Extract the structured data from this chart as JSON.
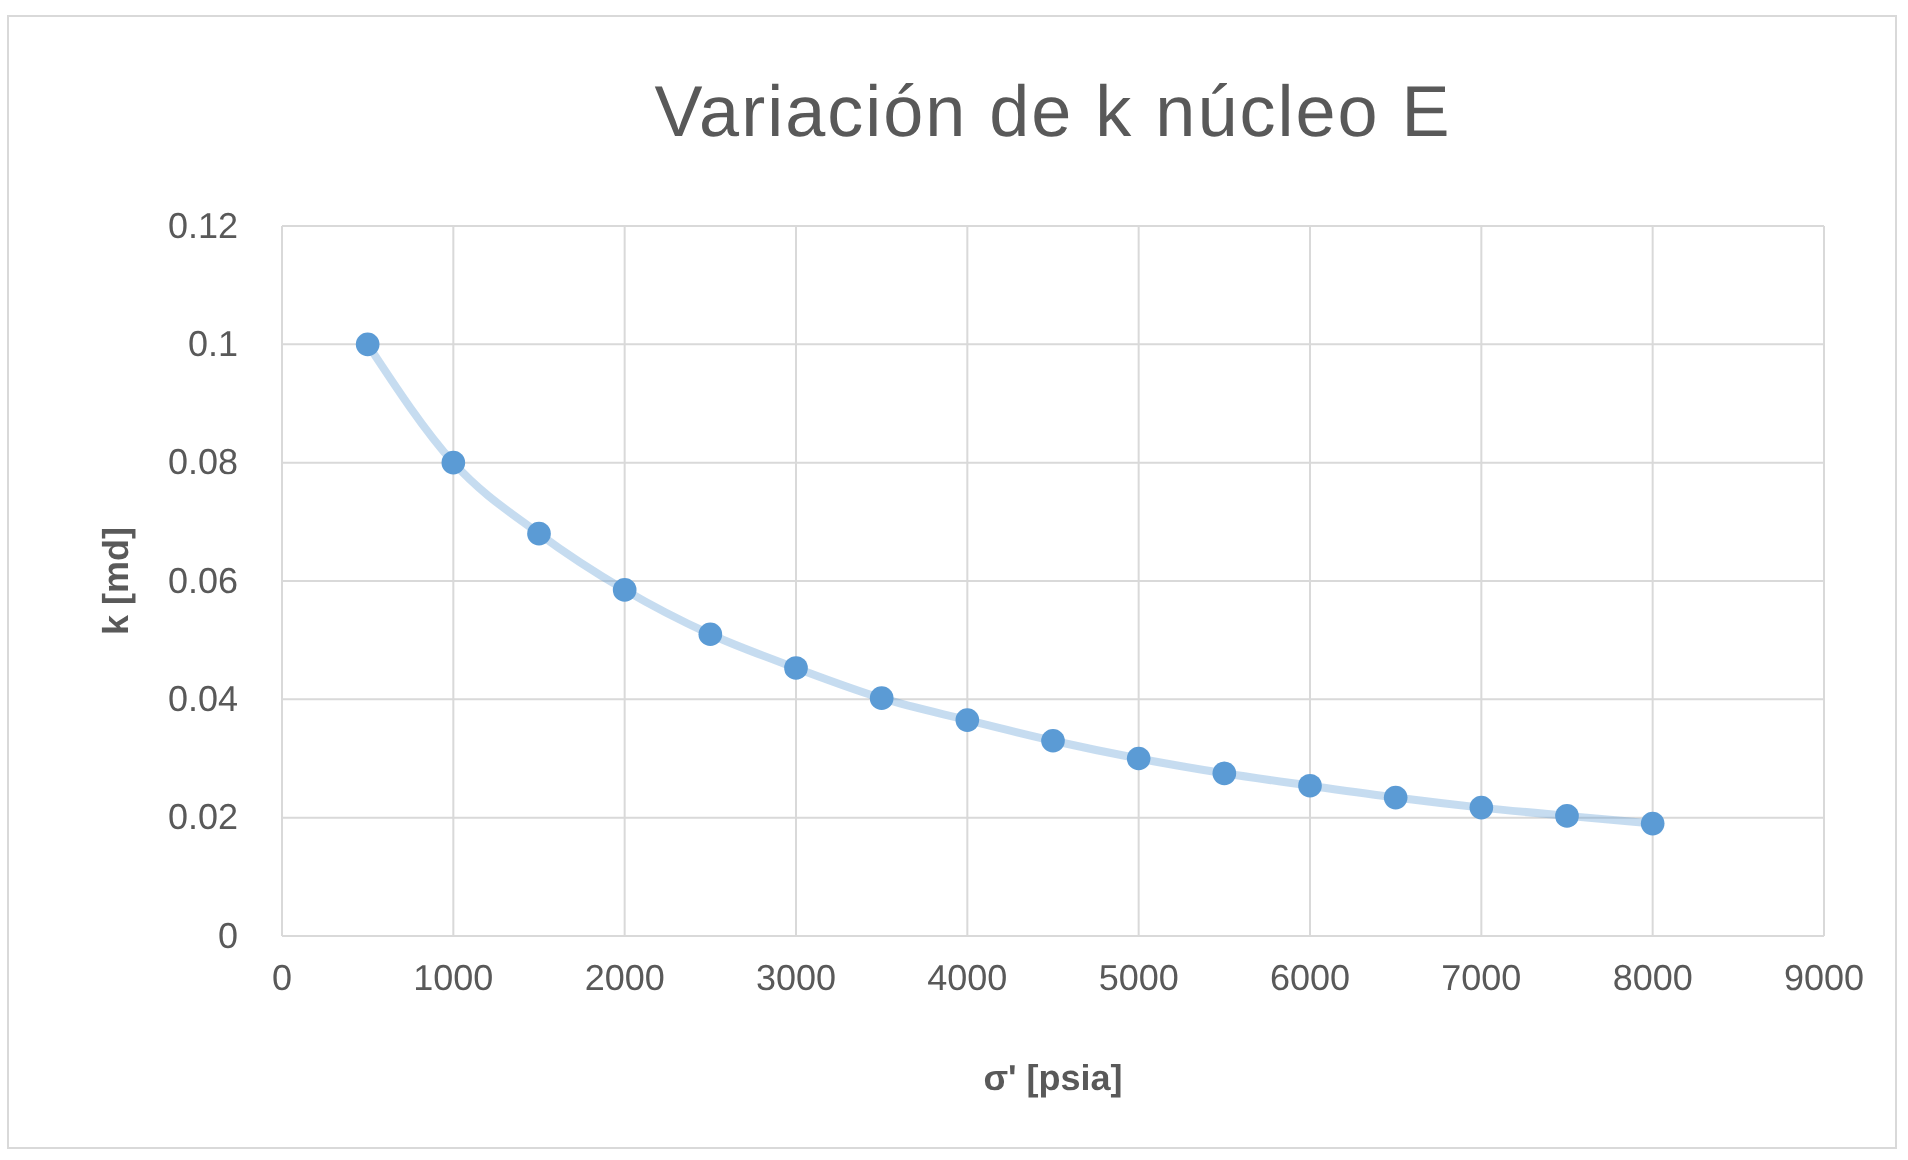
{
  "chart_data": {
    "type": "line",
    "title": "Variación de k núcleo E",
    "xlabel": "σ' [psia]",
    "ylabel": "k [md]",
    "x": [
      500,
      1000,
      1500,
      2000,
      2500,
      3000,
      3500,
      4000,
      4500,
      5000,
      5500,
      6000,
      6500,
      7000,
      7500,
      8000
    ],
    "series": [
      {
        "color": "#5b9bd5",
        "values": [
          0.1,
          0.08,
          0.068,
          0.0585,
          0.051,
          0.0453,
          0.0402,
          0.0365,
          0.033,
          0.03,
          0.0275,
          0.0254,
          0.0234,
          0.0217,
          0.0203,
          0.019
        ]
      }
    ],
    "xlim": [
      0,
      9000
    ],
    "xticks": [
      0,
      1000,
      2000,
      3000,
      4000,
      5000,
      6000,
      7000,
      8000,
      9000
    ],
    "ylim": [
      0,
      0.12
    ],
    "yticks": [
      0,
      0.02,
      0.04,
      0.06,
      0.08,
      0.1,
      0.12
    ],
    "grid": true,
    "marker": "circle",
    "line_style": "solid"
  }
}
